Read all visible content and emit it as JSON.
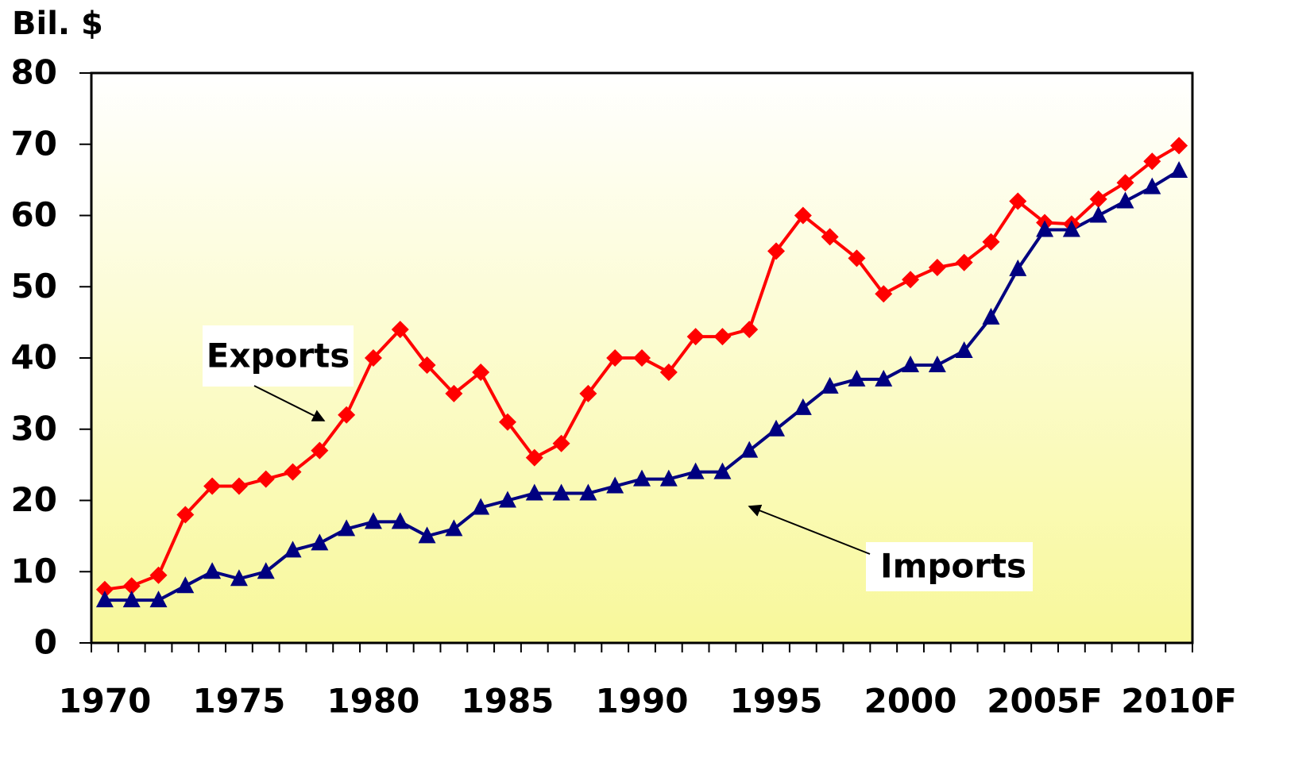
{
  "chart_data": {
    "type": "line",
    "y_axis_label": "Bil. $",
    "categories": [
      "1970",
      null,
      null,
      null,
      null,
      "1975",
      null,
      null,
      null,
      null,
      "1980",
      null,
      null,
      null,
      null,
      "1985",
      null,
      null,
      null,
      null,
      "1990",
      null,
      null,
      null,
      null,
      "1995",
      null,
      null,
      null,
      null,
      "2000",
      null,
      null,
      null,
      null,
      "2005F",
      null,
      null,
      null,
      null,
      "2010F"
    ],
    "series": [
      {
        "name": "Exports",
        "color": "#ff0000",
        "marker": "diamond",
        "values": [
          7.5,
          8,
          9.5,
          18,
          22,
          22,
          23,
          24,
          27,
          32,
          40,
          44,
          39,
          35,
          38,
          31,
          26,
          28,
          35,
          40,
          40,
          38,
          43,
          43,
          44,
          55,
          60,
          57,
          54,
          49,
          51,
          52.7,
          53.4,
          56.3,
          62,
          59,
          58.8,
          62.3,
          64.6,
          67.6,
          69.8
        ]
      },
      {
        "name": "Imports",
        "color": "#000080",
        "marker": "triangle",
        "values": [
          6,
          6,
          6,
          8,
          10,
          9,
          10,
          13,
          14,
          16,
          17,
          17,
          15,
          16,
          19,
          20,
          21,
          21,
          21,
          22,
          23,
          23,
          24,
          24,
          27,
          30,
          33,
          36,
          37,
          37,
          39,
          39,
          41,
          45.7,
          52.5,
          58,
          58,
          60,
          62,
          64,
          66.3
        ]
      }
    ],
    "ylim": [
      0,
      80
    ],
    "yticks": [
      0,
      10,
      20,
      30,
      40,
      50,
      60,
      70,
      80
    ],
    "grid": false
  }
}
